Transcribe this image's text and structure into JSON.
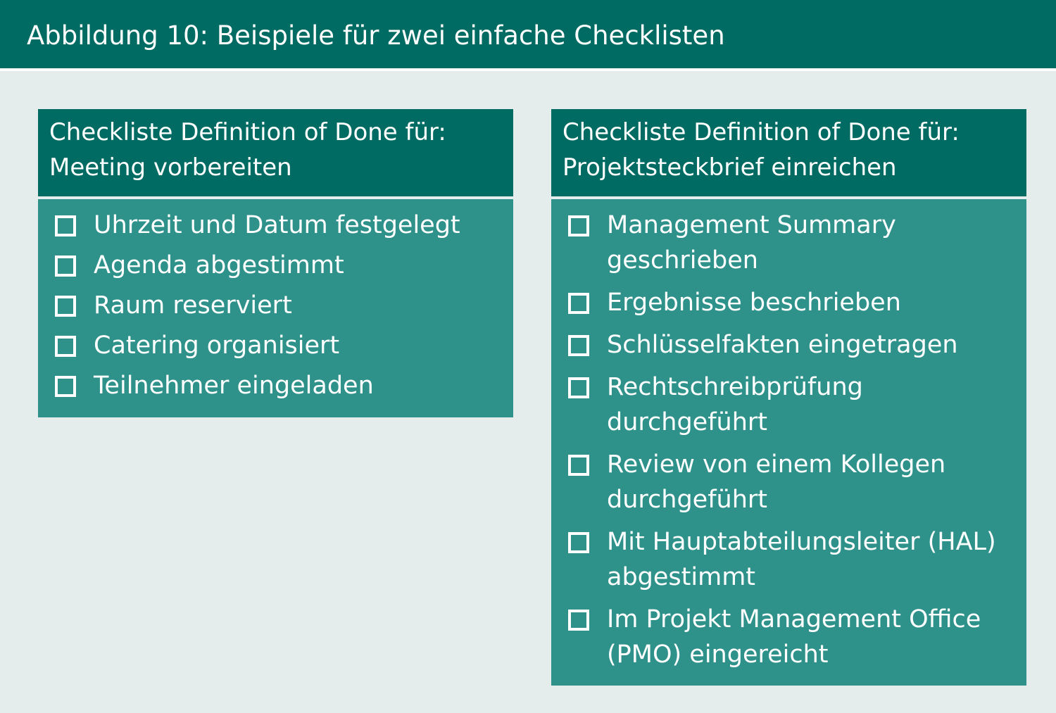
{
  "title": "Abbildung 10: Beispiele für zwei einfache Checklisten",
  "colors": {
    "dark_teal": "#006b62",
    "teal": "#2e918a",
    "background": "#e4edeb",
    "text": "#ffffff"
  },
  "left_checklist": {
    "header_line1": "Checkliste Definition of Done für:",
    "header_line2": "Meeting vorbereiten",
    "items": [
      "Uhrzeit und Datum festgelegt",
      "Agenda abgestimmt",
      "Raum reserviert",
      "Catering organisiert",
      "Teilnehmer eingeladen"
    ]
  },
  "right_checklist": {
    "header_line1": "Checkliste Definition of Done für:",
    "header_line2": "Projektsteckbrief einreichen",
    "items": [
      "Management Summary\ngeschrieben",
      "Ergebnisse beschrieben",
      "Schlüsselfakten eingetragen",
      "Rechtschreibprüfung\ndurchgeführt",
      "Review von einem Kollegen\ndurchgeführt",
      "Mit Hauptabteilungsleiter (HAL)\nabgestimmt",
      "Im Projekt Management Office\n(PMO) eingereicht"
    ]
  }
}
